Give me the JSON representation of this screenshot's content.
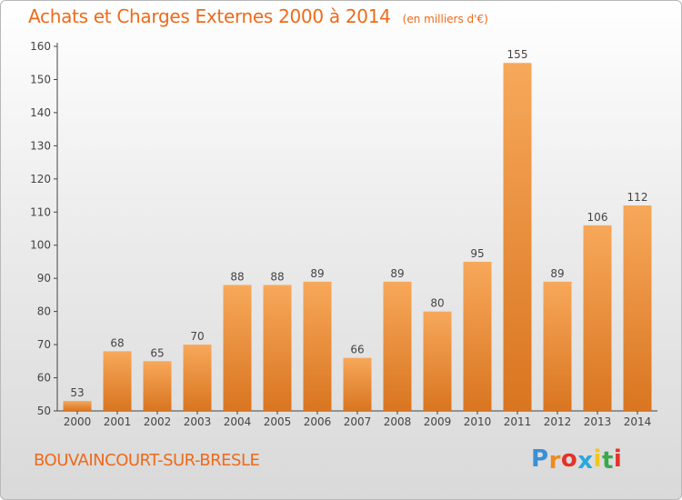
{
  "chart_data": {
    "type": "bar",
    "title": "Achats et Charges Externes 2000 à 2014",
    "unit_label": "(en milliers d'€)",
    "categories": [
      "2000",
      "2001",
      "2002",
      "2003",
      "2004",
      "2005",
      "2006",
      "2007",
      "2008",
      "2009",
      "2010",
      "2011",
      "2012",
      "2013",
      "2014"
    ],
    "values": [
      53,
      68,
      65,
      70,
      88,
      88,
      89,
      66,
      89,
      80,
      95,
      155,
      89,
      106,
      112
    ],
    "ylim": [
      50,
      160
    ],
    "yticks": [
      "50",
      "60",
      "70",
      "80",
      "90",
      "100",
      "110",
      "120",
      "130",
      "140",
      "150",
      "160"
    ],
    "xlabel": "",
    "ylabel": "",
    "grid": false,
    "bar_color_top": "#f7a85a",
    "bar_color_bottom": "#d97520",
    "text_color": "#ee6a1a"
  },
  "footer": {
    "commune": "BOUVAINCOURT-SUR-BRESLE"
  },
  "logo": {
    "text": "Proxiti",
    "letters": [
      "P",
      "r",
      "o",
      "x",
      "i",
      "t",
      "i"
    ],
    "colors": [
      "#3a8fd6",
      "#f08a1c",
      "#e2332a",
      "#2aa8e0",
      "#f5c51c",
      "#3aa84a",
      "#e2332a"
    ]
  }
}
